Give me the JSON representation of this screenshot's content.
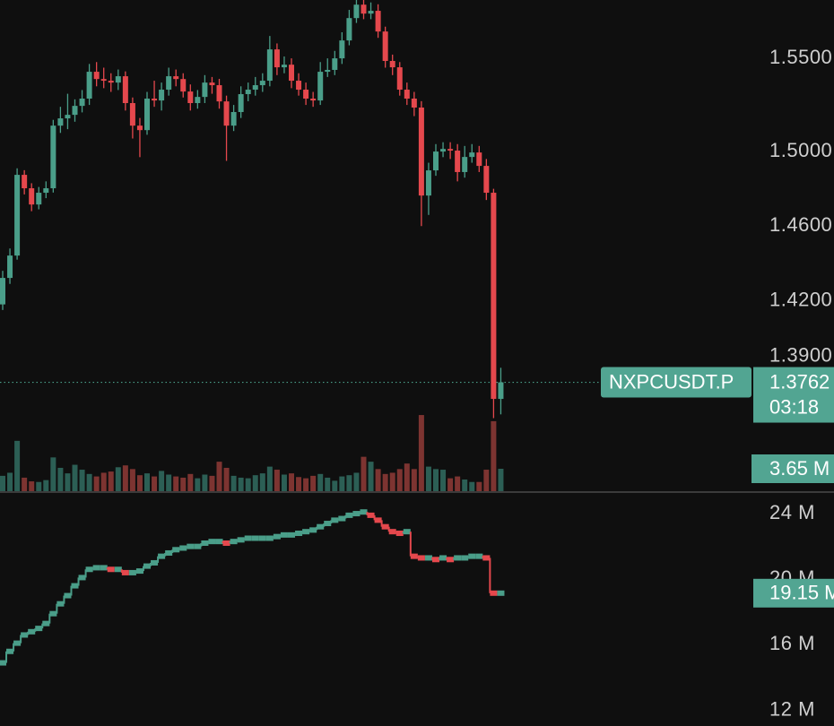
{
  "chart_data": {
    "type": "candlestick",
    "symbol": "NXPCUSDT.P",
    "countdown": "03:18",
    "up_color": "#4a9e89",
    "down_color": "#e5484d",
    "open": [
      1.418,
      1.4322,
      1.4442,
      1.4875,
      1.4803,
      1.4716,
      1.4779,
      1.4803,
      1.5139,
      1.5178,
      1.5197,
      1.5245,
      1.5284,
      1.5428,
      1.5389,
      1.538,
      1.537,
      1.5404,
      1.526,
      1.5139,
      1.5115,
      1.5284,
      1.5274,
      1.5332,
      1.5404,
      1.5389,
      1.5322,
      1.526,
      1.5293,
      1.537,
      1.5356,
      1.5269,
      1.5139,
      1.5212,
      1.5308,
      1.5332,
      1.5356,
      1.538,
      1.5548,
      1.5452,
      1.5466,
      1.538,
      1.5332,
      1.5284,
      1.5274,
      1.5428,
      1.5438,
      1.55,
      1.5596,
      1.5716,
      1.5788,
      1.574,
      1.5755,
      1.5644,
      1.5486,
      1.5452,
      1.5332,
      1.5284,
      1.5236,
      1.4764,
      1.4899,
      1.5,
      1.5014,
      1.5005,
      1.489,
      1.4971,
      1.4995,
      1.4923,
      1.4779,
      1.3673
    ],
    "high": [
      1.436,
      1.448,
      1.491,
      1.49,
      1.483,
      1.481,
      1.484,
      1.517,
      1.524,
      1.531,
      1.528,
      1.533,
      1.547,
      1.548,
      1.545,
      1.542,
      1.544,
      1.543,
      1.529,
      1.518,
      1.532,
      1.538,
      1.537,
      1.545,
      1.544,
      1.542,
      1.536,
      1.533,
      1.541,
      1.54,
      1.539,
      1.53,
      1.525,
      1.535,
      1.537,
      1.54,
      1.542,
      1.562,
      1.558,
      1.551,
      1.55,
      1.542,
      1.537,
      1.532,
      1.548,
      1.55,
      1.554,
      1.564,
      1.576,
      1.582,
      1.582,
      1.58,
      1.579,
      1.567,
      1.552,
      1.548,
      1.537,
      1.532,
      1.527,
      1.494,
      1.504,
      1.505,
      1.505,
      1.504,
      1.503,
      1.504,
      1.503,
      1.496,
      1.48,
      1.384
    ],
    "low": [
      1.415,
      1.429,
      1.442,
      1.477,
      1.468,
      1.469,
      1.475,
      1.478,
      1.51,
      1.512,
      1.516,
      1.521,
      1.525,
      1.535,
      1.534,
      1.532,
      1.533,
      1.522,
      1.507,
      1.497,
      1.509,
      1.524,
      1.522,
      1.53,
      1.535,
      1.529,
      1.522,
      1.523,
      1.526,
      1.531,
      1.523,
      1.495,
      1.511,
      1.518,
      1.527,
      1.53,
      1.532,
      1.535,
      1.541,
      1.542,
      1.534,
      1.53,
      1.525,
      1.524,
      1.525,
      1.54,
      1.541,
      1.547,
      1.557,
      1.569,
      1.571,
      1.571,
      1.561,
      1.545,
      1.541,
      1.53,
      1.525,
      1.519,
      1.46,
      1.466,
      1.487,
      1.497,
      1.496,
      1.484,
      1.486,
      1.494,
      1.489,
      1.474,
      1.357,
      1.359
    ],
    "close": [
      1.4322,
      1.4442,
      1.4875,
      1.4803,
      1.4716,
      1.4779,
      1.4803,
      1.5139,
      1.5178,
      1.5197,
      1.5245,
      1.5284,
      1.5428,
      1.5389,
      1.538,
      1.537,
      1.5404,
      1.526,
      1.5139,
      1.5115,
      1.5284,
      1.5274,
      1.5332,
      1.5404,
      1.5389,
      1.5322,
      1.526,
      1.5293,
      1.537,
      1.5356,
      1.5269,
      1.5139,
      1.5212,
      1.5308,
      1.5332,
      1.5356,
      1.538,
      1.5548,
      1.5452,
      1.5466,
      1.538,
      1.5332,
      1.5284,
      1.5274,
      1.5428,
      1.5438,
      1.55,
      1.5596,
      1.5716,
      1.5788,
      1.574,
      1.5755,
      1.5644,
      1.5486,
      1.5452,
      1.5332,
      1.5284,
      1.5236,
      1.4764,
      1.4899,
      1.5,
      1.5014,
      1.5005,
      1.489,
      1.4971,
      1.4995,
      1.4923,
      1.4779,
      1.3673,
      1.3762
    ],
    "ylim": [
      1.3178,
      1.5813
    ],
    "yticks": [
      {
        "value": 1.55,
        "label": "1.5500"
      },
      {
        "value": 1.5,
        "label": "1.5000"
      },
      {
        "value": 1.46,
        "label": "1.4600"
      },
      {
        "value": 1.42,
        "label": "1.4200"
      },
      {
        "value": 1.39,
        "label": "1.3900"
      }
    ],
    "volume": {
      "values": [
        2.5,
        3,
        8.2,
        2.2,
        1.6,
        1.5,
        1.8,
        5.5,
        3.8,
        2.9,
        4.3,
        3.5,
        2.8,
        2.4,
        3,
        3.2,
        3.9,
        4.2,
        3.6,
        2.6,
        2.9,
        2.4,
        3.3,
        2.7,
        2.4,
        2.2,
        2.8,
        2.1,
        2.7,
        2.5,
        4.8,
        3.8,
        2.5,
        2.2,
        2.1,
        2.6,
        2.9,
        4,
        3.5,
        2.7,
        2.9,
        2.3,
        2.1,
        2.5,
        2.8,
        2.2,
        1.7,
        2.4,
        2.6,
        3,
        5.6,
        4.8,
        3.6,
        2.8,
        3,
        3.6,
        4.5,
        3.6,
        12.4,
        4,
        3.6,
        3.5,
        2.1,
        2.4,
        1.9,
        1.5,
        1.5,
        3.5,
        11.4,
        3.65
      ],
      "last_label": "3.65 M",
      "ylim": [
        0,
        80
      ],
      "up_color": "#2c5f55",
      "down_color": "#7d3431"
    },
    "lower": {
      "values": [
        14.9,
        15.6,
        16.1,
        16.6,
        16.8,
        17.0,
        17.3,
        17.9,
        18.5,
        19.0,
        19.6,
        20.1,
        20.6,
        20.7,
        20.7,
        20.6,
        20.6,
        20.4,
        20.4,
        20.5,
        20.8,
        21.0,
        21.4,
        21.6,
        21.8,
        21.9,
        22.0,
        22.0,
        22.2,
        22.3,
        22.3,
        22.2,
        22.3,
        22.4,
        22.5,
        22.5,
        22.5,
        22.5,
        22.6,
        22.7,
        22.7,
        22.8,
        22.9,
        23.0,
        23.2,
        23.4,
        23.6,
        23.7,
        23.9,
        24.0,
        24.1,
        23.9,
        23.6,
        23.2,
        22.9,
        22.8,
        22.9,
        21.4,
        21.3,
        21.3,
        21.2,
        21.3,
        21.2,
        21.3,
        21.3,
        21.4,
        21.4,
        21.3,
        19.15,
        19.15
      ],
      "last_label": "19.15 M",
      "ylim": [
        11.05,
        25.26
      ],
      "yticks": [
        {
          "value": 24,
          "label": "24 M"
        },
        {
          "value": 20,
          "label": "20 M"
        },
        {
          "value": 16,
          "label": "16 M"
        },
        {
          "value": 12,
          "label": "12 M"
        }
      ]
    }
  }
}
